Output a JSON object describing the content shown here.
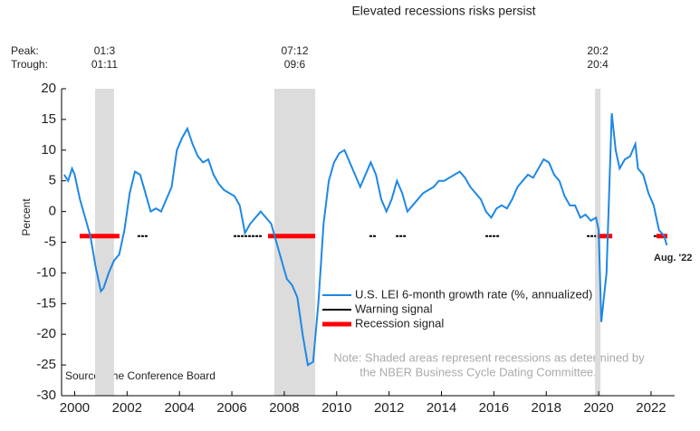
{
  "chart_data": {
    "type": "line",
    "title": "Elevated recessions risks persist",
    "ylabel": "Percent",
    "peak_label": "Peak:",
    "trough_label": "Trough:",
    "source": "Source: The Conference Board",
    "note": [
      "Note: Shaded areas represent recessions as determined by",
      "the NBER Business Cycle Dating Committee."
    ],
    "annotation": "Aug. '22",
    "xlim": [
      1999.5,
      2022.9
    ],
    "xticks": [
      2000,
      2002,
      2004,
      2006,
      2008,
      2010,
      2012,
      2014,
      2016,
      2018,
      2020,
      2022
    ],
    "ylim": [
      -30,
      20
    ],
    "yticks": [
      20,
      15,
      10,
      5,
      0,
      -5,
      -10,
      -15,
      -20,
      -25,
      -30
    ],
    "recessions": [
      {
        "start": 2000.78,
        "end": 2001.5,
        "peak": "01:3",
        "trough": "01:11"
      },
      {
        "start": 2007.62,
        "end": 2009.18,
        "peak": "07:12",
        "trough": "09:6"
      },
      {
        "start": 2019.86,
        "end": 2020.07,
        "peak": "20:2",
        "trough": "20:4"
      }
    ],
    "x": [
      1999.6,
      1999.75,
      1999.9,
      2000.0,
      2000.2,
      2000.4,
      2000.6,
      2000.8,
      2001.0,
      2001.1,
      2001.3,
      2001.5,
      2001.7,
      2001.9,
      2002.1,
      2002.3,
      2002.5,
      2002.7,
      2002.9,
      2003.1,
      2003.3,
      2003.5,
      2003.7,
      2003.9,
      2004.1,
      2004.3,
      2004.5,
      2004.7,
      2004.9,
      2005.1,
      2005.3,
      2005.5,
      2005.7,
      2005.9,
      2006.1,
      2006.3,
      2006.5,
      2006.7,
      2006.9,
      2007.1,
      2007.3,
      2007.5,
      2007.7,
      2007.9,
      2008.1,
      2008.3,
      2008.5,
      2008.7,
      2008.9,
      2009.1,
      2009.3,
      2009.5,
      2009.7,
      2009.9,
      2010.1,
      2010.3,
      2010.5,
      2010.7,
      2010.9,
      2011.1,
      2011.3,
      2011.5,
      2011.7,
      2011.9,
      2012.1,
      2012.3,
      2012.5,
      2012.7,
      2012.9,
      2013.1,
      2013.3,
      2013.5,
      2013.7,
      2013.9,
      2014.1,
      2014.3,
      2014.5,
      2014.7,
      2014.9,
      2015.1,
      2015.3,
      2015.5,
      2015.7,
      2015.9,
      2016.1,
      2016.3,
      2016.5,
      2016.7,
      2016.9,
      2017.1,
      2017.3,
      2017.5,
      2017.7,
      2017.9,
      2018.1,
      2018.3,
      2018.5,
      2018.7,
      2018.9,
      2019.1,
      2019.3,
      2019.5,
      2019.7,
      2019.9,
      2020.0,
      2020.1,
      2020.3,
      2020.5,
      2020.65,
      2020.8,
      2021.0,
      2021.2,
      2021.4,
      2021.5,
      2021.7,
      2021.9,
      2022.1,
      2022.3,
      2022.5,
      2022.6
    ],
    "series": [
      {
        "name": "U.S. LEI 6-month growth rate (%, annualized)",
        "color": "#1e88e5",
        "values": [
          6,
          5,
          7,
          6,
          2,
          -1,
          -4,
          -9,
          -13,
          -12.5,
          -10,
          -8,
          -7,
          -3,
          3,
          6.5,
          6,
          3,
          0,
          0.5,
          0,
          2,
          4,
          10,
          12,
          13.5,
          11,
          9,
          8,
          8.5,
          6,
          4.5,
          3.5,
          3,
          2.5,
          1,
          -3.5,
          -2,
          -1,
          0,
          -1,
          -2,
          -5,
          -8,
          -11,
          -12,
          -14,
          -20,
          -25,
          -24.5,
          -15,
          -2,
          5,
          8,
          9.5,
          10,
          8,
          6,
          4,
          6,
          8,
          6,
          2,
          0,
          2,
          5,
          3,
          0,
          1,
          2,
          3,
          3.5,
          4,
          5,
          5,
          5.5,
          6,
          6.5,
          5.5,
          4,
          3,
          2,
          0,
          -1,
          0.5,
          1,
          0.5,
          2,
          4,
          5,
          6,
          5.5,
          7,
          8.5,
          8,
          6,
          5,
          2.5,
          1,
          1,
          -1,
          -0.5,
          -1.5,
          -1,
          -3,
          -18,
          -10,
          16,
          10,
          7,
          8.5,
          9,
          11,
          7,
          6,
          3,
          1,
          -3,
          -4,
          -5.5
        ]
      }
    ],
    "signals": [
      {
        "name": "Warning signal",
        "color": "#000000",
        "level": -4,
        "periods": [
          [
            2002.4,
            2002.78
          ],
          [
            2006.07,
            2007.17
          ],
          [
            2011.25,
            2011.5
          ],
          [
            2012.26,
            2012.64
          ],
          [
            2015.68,
            2016.23
          ],
          [
            2019.55,
            2019.9
          ],
          [
            2022.1,
            2022.28
          ]
        ]
      },
      {
        "name": "Recession signal",
        "color": "#ff0000",
        "level": -4,
        "periods": [
          [
            2000.19,
            2001.71
          ],
          [
            2007.38,
            2009.18
          ],
          [
            2019.96,
            2020.52
          ],
          [
            2022.21,
            2022.62
          ]
        ]
      }
    ]
  }
}
